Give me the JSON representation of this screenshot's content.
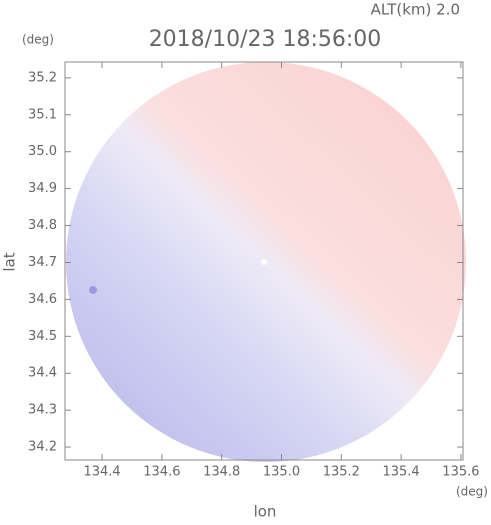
{
  "chart_data": {
    "type": "radar-ppi",
    "title": "2018/10/23 18:56:00",
    "subtitle": "ALT(km) 2.0",
    "x_label": "lon",
    "y_label": "lat",
    "x_unit": "(deg)",
    "y_unit": "(deg)",
    "xlim": [
      134.276,
      135.607
    ],
    "ylim": [
      34.165,
      35.243
    ],
    "xticks": [
      134.4,
      134.6,
      134.8,
      {
        "value": 135,
        "label": "135.0"
      },
      135.2,
      135.4,
      135.6
    ],
    "yticks": [
      34.2,
      34.3,
      34.4,
      34.5,
      34.6,
      34.7,
      34.8,
      34.9,
      {
        "value": 35,
        "label": "35.0"
      },
      35.1,
      35.2
    ]
  }
}
